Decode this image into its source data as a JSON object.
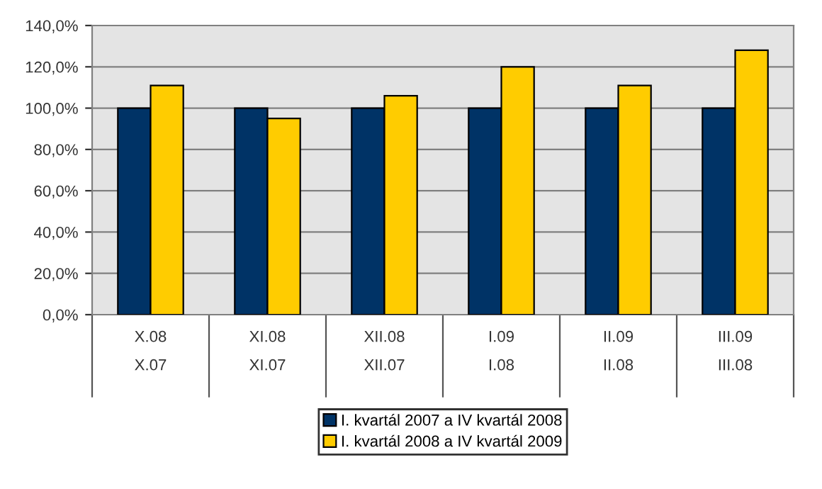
{
  "chart_data": {
    "type": "bar",
    "categories": [
      "X.08\nX.07",
      "XI.08\nXI.07",
      "XII.08\nXII.07",
      "I.09\nI.08",
      "II.09\nII.08",
      "III.09\nIII.08"
    ],
    "series": [
      {
        "name": "I. kvartál 2007 a IV kvartál 2008",
        "color": "#003366",
        "values": [
          100,
          100,
          100,
          100,
          100,
          100
        ]
      },
      {
        "name": "I. kvartál 2008 a IV kvartál 2009",
        "color": "#ffcc00",
        "values": [
          111,
          95,
          106,
          120,
          111,
          128
        ]
      }
    ],
    "ylim": [
      0,
      140
    ],
    "yticks": [
      {
        "value": 0,
        "label": "0,0%"
      },
      {
        "value": 20,
        "label": "20,0%"
      },
      {
        "value": 40,
        "label": "40,0%"
      },
      {
        "value": 60,
        "label": "60,0%"
      },
      {
        "value": 80,
        "label": "80,0%"
      },
      {
        "value": 100,
        "label": "100,0%"
      },
      {
        "value": 120,
        "label": "120,0%"
      },
      {
        "value": 140,
        "label": "140,0%"
      }
    ],
    "grid": "y",
    "legend": "bottom"
  }
}
